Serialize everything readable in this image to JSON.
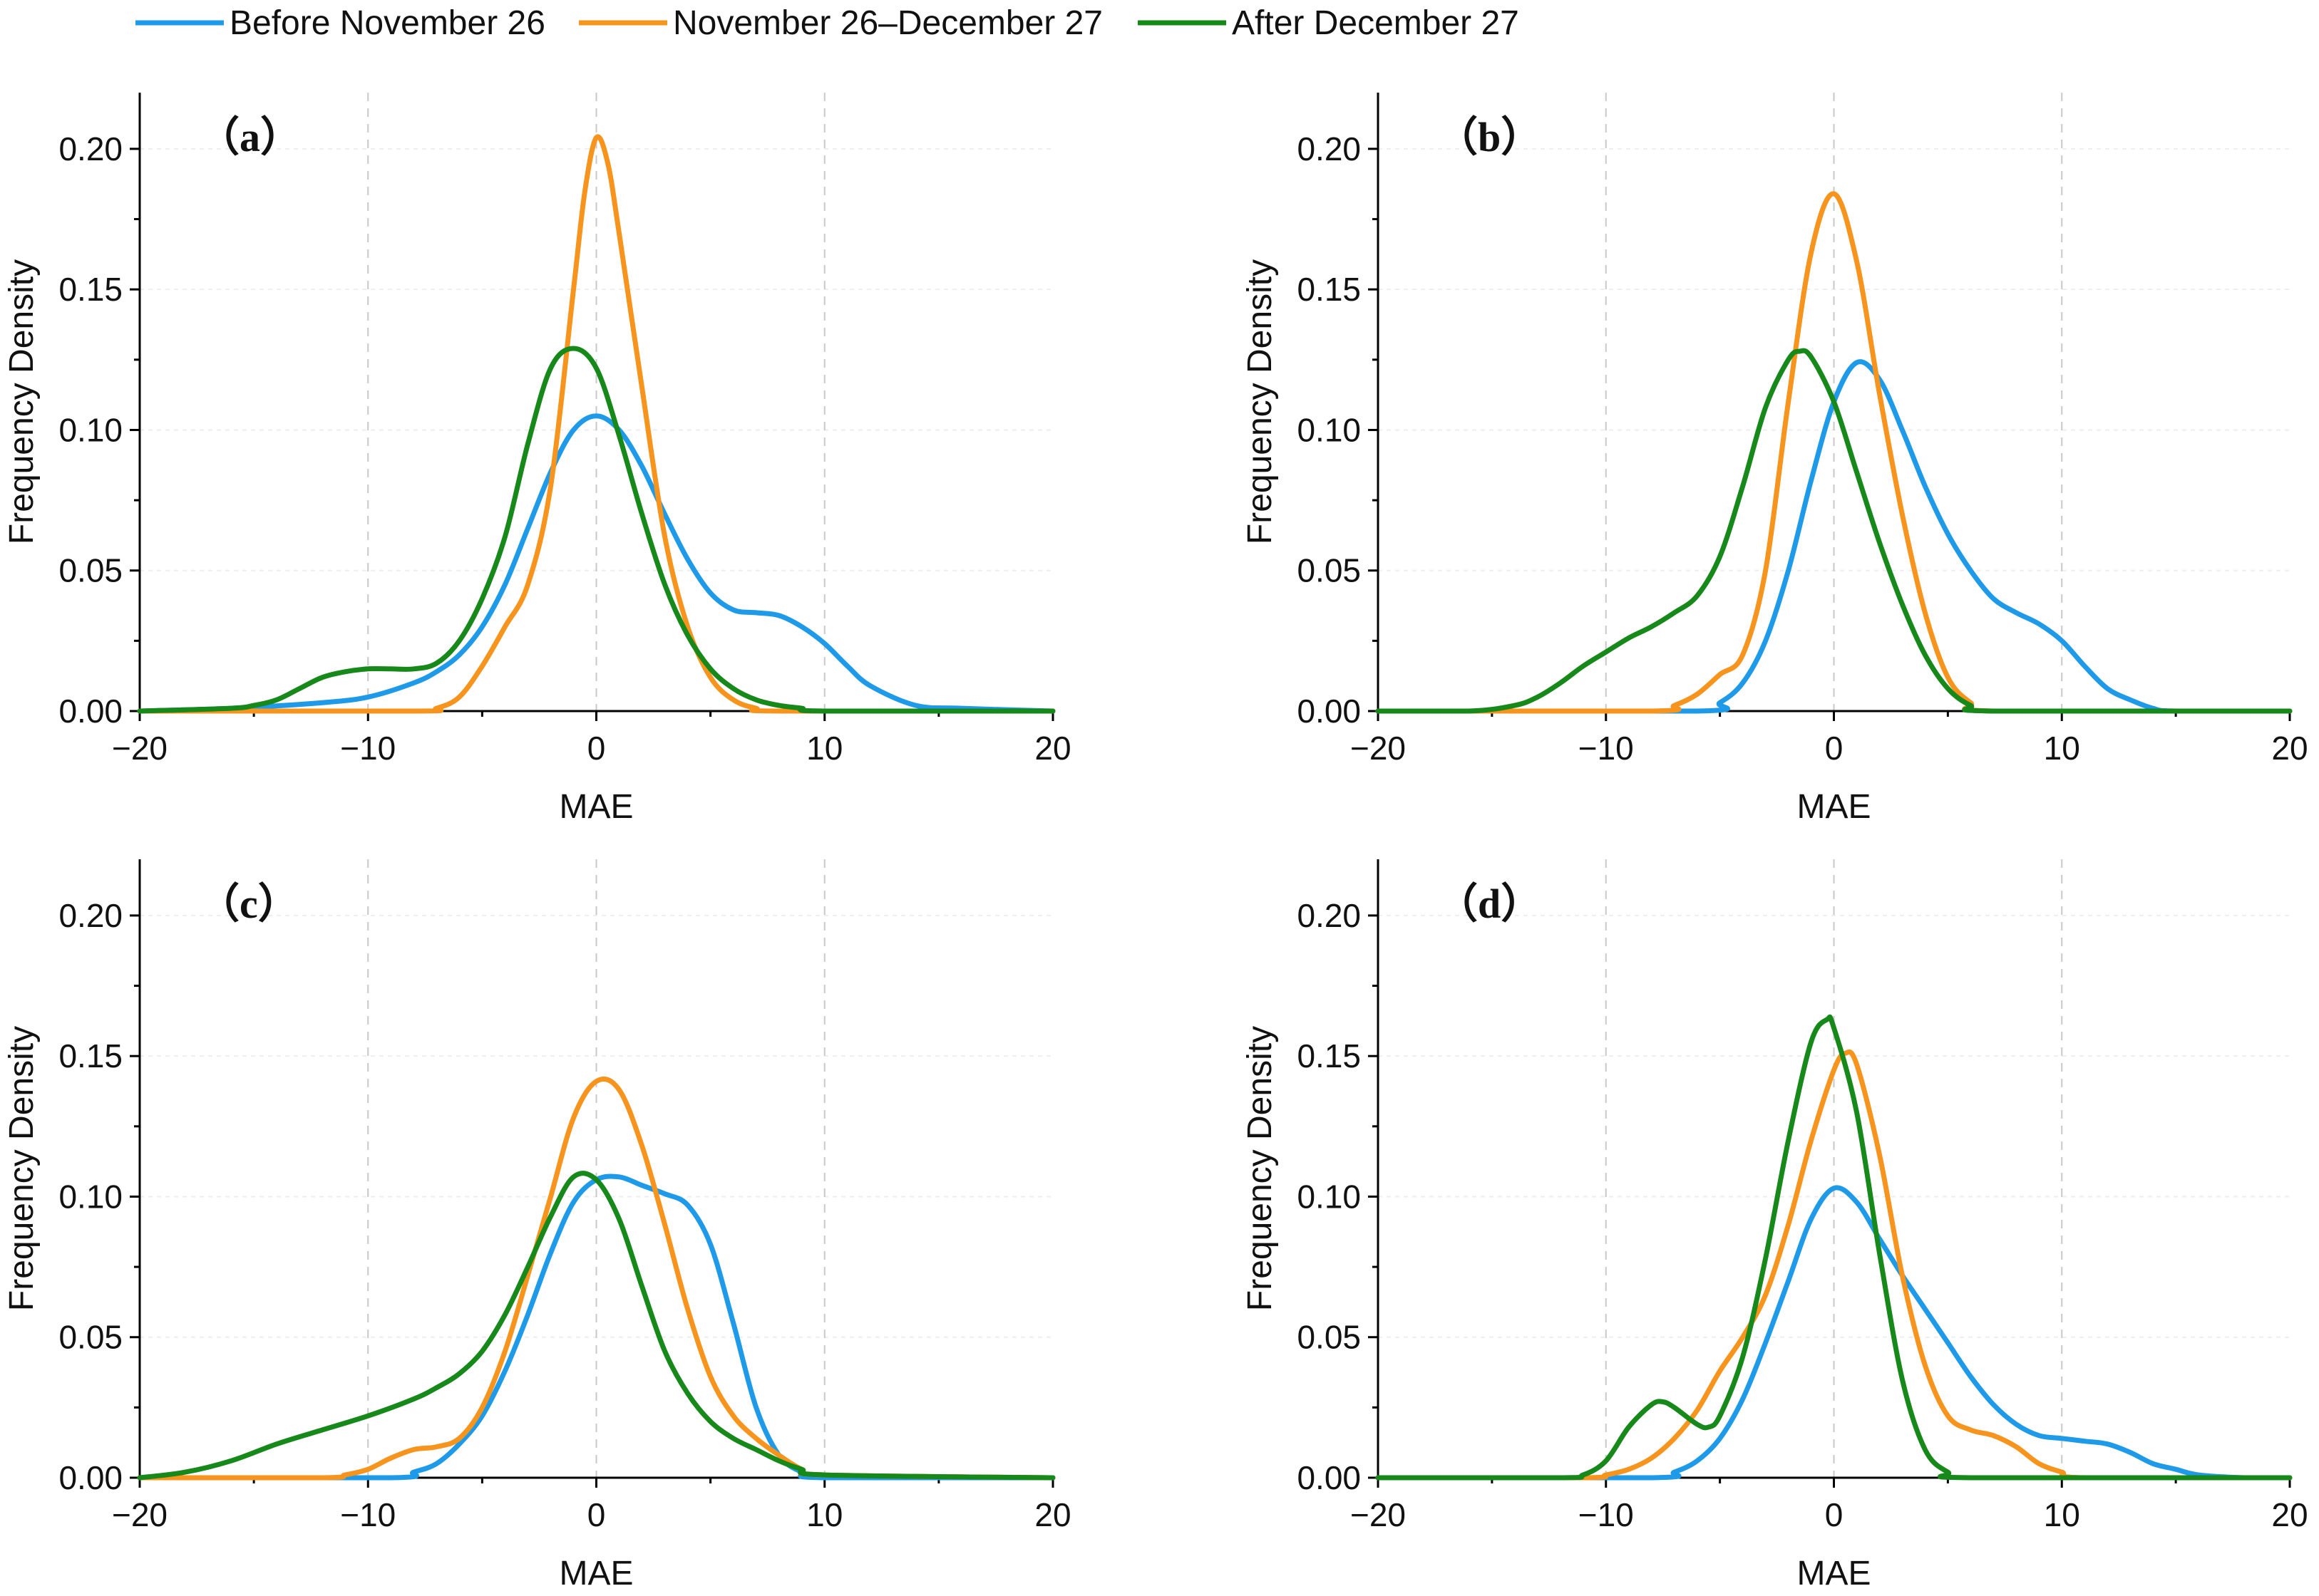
{
  "legend": [
    {
      "name": "Before November 26",
      "color": "#1f9ae8"
    },
    {
      "name": "November 26–December 27",
      "color": "#f7941d"
    },
    {
      "name": "After December 27",
      "color": "#17881a"
    }
  ],
  "chart_data": [
    {
      "type": "line",
      "panel_label": "（a）",
      "xlabel": "MAE",
      "ylabel": "Frequency Density",
      "xlim": [
        -20,
        20
      ],
      "ylim": [
        0,
        0.22
      ],
      "xticks": [
        -20,
        -10,
        0,
        10,
        20
      ],
      "yticks": [
        0.0,
        0.05,
        0.1,
        0.15,
        0.2
      ],
      "grid": "vertical dashed",
      "series": [
        {
          "name": "Before November 26",
          "x": [
            -20,
            -16,
            -12,
            -10,
            -8,
            -7,
            -6,
            -5,
            -4,
            -3,
            -2,
            -1,
            0,
            1,
            2,
            3,
            4,
            5,
            6,
            7,
            8,
            9,
            10,
            11,
            12,
            14,
            16,
            20
          ],
          "y": [
            0,
            0.001,
            0.003,
            0.005,
            0.01,
            0.014,
            0.02,
            0.03,
            0.045,
            0.065,
            0.085,
            0.1,
            0.105,
            0.1,
            0.087,
            0.07,
            0.054,
            0.042,
            0.036,
            0.035,
            0.034,
            0.03,
            0.024,
            0.016,
            0.009,
            0.002,
            0.001,
            0
          ]
        },
        {
          "name": "November 26–December 27",
          "x": [
            -20,
            -8,
            -7,
            -6,
            -5,
            -4,
            -3,
            -2,
            -1,
            -0.5,
            0,
            0.5,
            1,
            2,
            3,
            4,
            5,
            6,
            7,
            8,
            20
          ],
          "y": [
            0,
            0,
            0.001,
            0.005,
            0.016,
            0.03,
            0.045,
            0.08,
            0.15,
            0.185,
            0.204,
            0.195,
            0.17,
            0.115,
            0.062,
            0.03,
            0.012,
            0.004,
            0.001,
            0,
            0
          ]
        },
        {
          "name": "After December 27",
          "x": [
            -20,
            -16,
            -15,
            -14,
            -13,
            -12,
            -11,
            -10,
            -9,
            -8,
            -7,
            -6,
            -5,
            -4,
            -3,
            -2,
            -1,
            0,
            1,
            2,
            3,
            4,
            5,
            6,
            7,
            8,
            9,
            10,
            20
          ],
          "y": [
            0,
            0.001,
            0.002,
            0.004,
            0.008,
            0.012,
            0.014,
            0.015,
            0.015,
            0.015,
            0.017,
            0.025,
            0.04,
            0.062,
            0.095,
            0.122,
            0.129,
            0.122,
            0.098,
            0.07,
            0.045,
            0.027,
            0.015,
            0.008,
            0.004,
            0.002,
            0.001,
            0,
            0
          ]
        }
      ]
    },
    {
      "type": "line",
      "panel_label": "（b）",
      "xlabel": "MAE",
      "ylabel": "Frequency Density",
      "xlim": [
        -20,
        20
      ],
      "ylim": [
        0,
        0.22
      ],
      "xticks": [
        -20,
        -10,
        0,
        10,
        20
      ],
      "yticks": [
        0.0,
        0.05,
        0.1,
        0.15,
        0.2
      ],
      "grid": "vertical dashed",
      "series": [
        {
          "name": "Before November 26",
          "x": [
            -20,
            -6,
            -5,
            -4,
            -3,
            -2,
            -1,
            0,
            1,
            2,
            3,
            4,
            5,
            6,
            7,
            8,
            9,
            10,
            11,
            12,
            13,
            14,
            15,
            20
          ],
          "y": [
            0,
            0,
            0.003,
            0.01,
            0.025,
            0.05,
            0.082,
            0.11,
            0.124,
            0.118,
            0.1,
            0.08,
            0.063,
            0.05,
            0.04,
            0.035,
            0.031,
            0.025,
            0.016,
            0.008,
            0.004,
            0.001,
            0,
            0
          ]
        },
        {
          "name": "November 26–December 27",
          "x": [
            -20,
            -8,
            -7,
            -6,
            -5,
            -4,
            -3,
            -2,
            -1,
            0,
            1,
            2,
            3,
            4,
            5,
            6,
            7,
            20
          ],
          "y": [
            0,
            0,
            0.002,
            0.006,
            0.013,
            0.02,
            0.05,
            0.11,
            0.163,
            0.184,
            0.16,
            0.113,
            0.07,
            0.035,
            0.012,
            0.003,
            0,
            0
          ]
        },
        {
          "name": "After December 27",
          "x": [
            -20,
            -16,
            -14,
            -13,
            -12,
            -11,
            -10,
            -9,
            -8,
            -7,
            -6,
            -5,
            -4,
            -3,
            -2,
            -1.5,
            -1,
            0,
            1,
            2,
            3,
            4,
            5,
            6,
            7,
            20
          ],
          "y": [
            0,
            0,
            0.002,
            0.005,
            0.01,
            0.016,
            0.021,
            0.026,
            0.03,
            0.035,
            0.041,
            0.055,
            0.08,
            0.108,
            0.125,
            0.128,
            0.126,
            0.11,
            0.085,
            0.06,
            0.038,
            0.02,
            0.008,
            0.002,
            0,
            0
          ]
        }
      ]
    },
    {
      "type": "line",
      "panel_label": "（c）",
      "xlabel": "MAE",
      "ylabel": "Frequency Density",
      "xlim": [
        -20,
        20
      ],
      "ylim": [
        0,
        0.22
      ],
      "xticks": [
        -20,
        -10,
        0,
        10,
        20
      ],
      "yticks": [
        0.0,
        0.05,
        0.1,
        0.15,
        0.2
      ],
      "grid": "vertical dashed",
      "series": [
        {
          "name": "Before November 26",
          "x": [
            -20,
            -9,
            -8,
            -7,
            -6,
            -5,
            -4,
            -3,
            -2,
            -1,
            0,
            1,
            2,
            3,
            4,
            5,
            6,
            7,
            8,
            9,
            10,
            20
          ],
          "y": [
            0,
            0,
            0.002,
            0.005,
            0.012,
            0.022,
            0.038,
            0.058,
            0.08,
            0.098,
            0.106,
            0.107,
            0.104,
            0.101,
            0.097,
            0.083,
            0.055,
            0.025,
            0.008,
            0.002,
            0,
            0
          ]
        },
        {
          "name": "November 26–December 27",
          "x": [
            -20,
            -12,
            -11,
            -10,
            -9,
            -8,
            -7,
            -6,
            -5,
            -4,
            -3,
            -2,
            -1,
            0,
            1,
            2,
            3,
            4,
            5,
            6,
            7,
            8,
            9,
            10,
            20
          ],
          "y": [
            0,
            0,
            0.001,
            0.003,
            0.007,
            0.01,
            0.011,
            0.014,
            0.025,
            0.045,
            0.072,
            0.1,
            0.128,
            0.141,
            0.138,
            0.118,
            0.09,
            0.06,
            0.036,
            0.022,
            0.014,
            0.008,
            0.003,
            0.001,
            0
          ]
        },
        {
          "name": "After December 27",
          "x": [
            -20,
            -18,
            -16,
            -14,
            -12,
            -10,
            -8,
            -7,
            -6,
            -5,
            -4,
            -3,
            -2,
            -1,
            0,
            1,
            2,
            3,
            4,
            5,
            6,
            7,
            8,
            9,
            10,
            20
          ],
          "y": [
            0,
            0.002,
            0.006,
            0.012,
            0.017,
            0.022,
            0.028,
            0.032,
            0.037,
            0.045,
            0.058,
            0.075,
            0.093,
            0.107,
            0.106,
            0.092,
            0.068,
            0.045,
            0.03,
            0.02,
            0.014,
            0.01,
            0.006,
            0.003,
            0.001,
            0
          ]
        }
      ]
    },
    {
      "type": "line",
      "panel_label": "（d）",
      "xlabel": "MAE",
      "ylabel": "Frequency Density",
      "xlim": [
        -20,
        20
      ],
      "ylim": [
        0,
        0.22
      ],
      "xticks": [
        -20,
        -10,
        0,
        10,
        20
      ],
      "yticks": [
        0.0,
        0.05,
        0.1,
        0.15,
        0.2
      ],
      "grid": "vertical dashed",
      "series": [
        {
          "name": "Before November 26",
          "x": [
            -20,
            -8,
            -7,
            -6,
            -5,
            -4,
            -3,
            -2,
            -1,
            0,
            1,
            2,
            3,
            4,
            5,
            6,
            7,
            8,
            9,
            10,
            11,
            12,
            13,
            14,
            15,
            16,
            18,
            20
          ],
          "y": [
            0,
            0,
            0.002,
            0.006,
            0.014,
            0.028,
            0.048,
            0.07,
            0.092,
            0.103,
            0.098,
            0.085,
            0.072,
            0.06,
            0.048,
            0.036,
            0.026,
            0.019,
            0.015,
            0.014,
            0.013,
            0.012,
            0.009,
            0.005,
            0.003,
            0.001,
            0,
            0
          ]
        },
        {
          "name": "November 26–December 27",
          "x": [
            -20,
            -11,
            -10,
            -9,
            -8,
            -7,
            -6,
            -5,
            -4,
            -3,
            -2,
            -1,
            0,
            0.5,
            1,
            2,
            3,
            4,
            5,
            6,
            7,
            8,
            9,
            10,
            11,
            20
          ],
          "y": [
            0,
            0,
            0.001,
            0.003,
            0.007,
            0.014,
            0.024,
            0.038,
            0.05,
            0.065,
            0.09,
            0.12,
            0.145,
            0.151,
            0.147,
            0.115,
            0.072,
            0.04,
            0.022,
            0.017,
            0.015,
            0.011,
            0.005,
            0.002,
            0,
            0
          ]
        },
        {
          "name": "After December 27",
          "x": [
            -20,
            -12,
            -11,
            -10,
            -9,
            -8,
            -7.5,
            -7,
            -6,
            -5.5,
            -5,
            -4,
            -3,
            -2,
            -1,
            -0.3,
            0,
            1,
            2,
            3,
            4,
            5,
            6,
            20
          ],
          "y": [
            0,
            0,
            0.001,
            0.006,
            0.018,
            0.026,
            0.027,
            0.025,
            0.019,
            0.018,
            0.022,
            0.043,
            0.078,
            0.12,
            0.155,
            0.163,
            0.16,
            0.13,
            0.08,
            0.035,
            0.01,
            0.002,
            0,
            0
          ]
        }
      ]
    }
  ]
}
